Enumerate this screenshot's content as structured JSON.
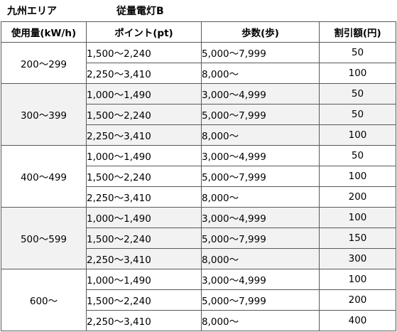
{
  "header": {
    "region": "九州エリア",
    "plan": "従量電灯B"
  },
  "table": {
    "columns": [
      "使用量(kW/h)",
      "ポイント(pt)",
      "歩数(歩)",
      "割引額(円)"
    ],
    "groups": [
      {
        "usage": "200〜299",
        "rows": [
          {
            "points": "1,500〜2,240",
            "steps": "5,000〜7,999",
            "discount": "50"
          },
          {
            "points": "2,250〜3,410",
            "steps": "8,000〜",
            "discount": "100"
          }
        ]
      },
      {
        "usage": "300〜399",
        "rows": [
          {
            "points": "1,000〜1,490",
            "steps": "3,000〜4,999",
            "discount": "50"
          },
          {
            "points": "1,500〜2,240",
            "steps": "5,000〜7,999",
            "discount": "50"
          },
          {
            "points": "2,250〜3,410",
            "steps": "8,000〜",
            "discount": "100"
          }
        ]
      },
      {
        "usage": "400〜499",
        "rows": [
          {
            "points": "1,000〜1,490",
            "steps": "3,000〜4,999",
            "discount": "50"
          },
          {
            "points": "1,500〜2,240",
            "steps": "5,000〜7,999",
            "discount": "100"
          },
          {
            "points": "2,250〜3,410",
            "steps": "8,000〜",
            "discount": "200"
          }
        ]
      },
      {
        "usage": "500〜599",
        "rows": [
          {
            "points": "1,000〜1,490",
            "steps": "3,000〜4,999",
            "discount": "100"
          },
          {
            "points": "1,500〜2,240",
            "steps": "5,000〜7,999",
            "discount": "150"
          },
          {
            "points": "2,250〜3,410",
            "steps": "8,000〜",
            "discount": "300"
          }
        ]
      },
      {
        "usage": "600〜",
        "rows": [
          {
            "points": "1,000〜1,490",
            "steps": "3,000〜4,999",
            "discount": "100"
          },
          {
            "points": "1,500〜2,240",
            "steps": "5,000〜7,999",
            "discount": "200"
          },
          {
            "points": "2,250〜3,410",
            "steps": "8,000〜",
            "discount": "400"
          }
        ]
      }
    ]
  },
  "colors": {
    "shaded_row": "#f2f2f2",
    "border": "#595959"
  }
}
